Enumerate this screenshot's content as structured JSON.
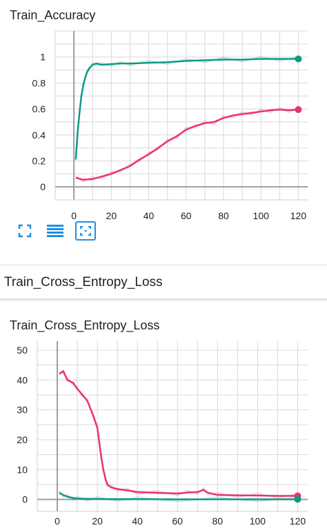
{
  "section_title": "Train_Cross_Entropy_Loss",
  "colors": {
    "teal": "#0e9a82",
    "pink": "#e8336d",
    "grid": "#d8d8d8",
    "axis": "#9e9e9e",
    "accent": "#1f8fe5"
  },
  "toolbar": {
    "icons": [
      "fullscreen-icon",
      "toggle-log-scale-icon",
      "fit-domain-icon"
    ]
  },
  "chart_data": [
    {
      "type": "line",
      "title": "Train_Accuracy",
      "xlim": [
        -10,
        125
      ],
      "ylim": [
        -0.1,
        1.2
      ],
      "xticks": [
        0,
        20,
        40,
        60,
        80,
        100,
        120
      ],
      "yticks": [
        0,
        0.2,
        0.4,
        0.6,
        0.8,
        1
      ],
      "ytick_labels": [
        "0",
        "0.2",
        "0.4",
        "0.6",
        "0.8",
        "1"
      ],
      "series": [
        {
          "color": "#0e9a82",
          "x": [
            1,
            2,
            3,
            4,
            5,
            6,
            7,
            8,
            10,
            12,
            15,
            20,
            25,
            30,
            40,
            50,
            60,
            70,
            80,
            90,
            100,
            110,
            120
          ],
          "y": [
            0.21,
            0.42,
            0.57,
            0.7,
            0.78,
            0.84,
            0.88,
            0.91,
            0.94,
            0.95,
            0.94,
            0.945,
            0.95,
            0.95,
            0.955,
            0.96,
            0.97,
            0.975,
            0.98,
            0.98,
            0.985,
            0.985,
            0.985
          ]
        },
        {
          "color": "#e8336d",
          "x": [
            1,
            5,
            10,
            15,
            20,
            25,
            30,
            35,
            40,
            45,
            50,
            55,
            60,
            65,
            70,
            75,
            80,
            85,
            90,
            95,
            100,
            105,
            110,
            115,
            120
          ],
          "y": [
            0.07,
            0.055,
            0.06,
            0.08,
            0.1,
            0.13,
            0.16,
            0.21,
            0.25,
            0.3,
            0.35,
            0.39,
            0.44,
            0.47,
            0.49,
            0.5,
            0.53,
            0.55,
            0.56,
            0.57,
            0.58,
            0.59,
            0.595,
            0.59,
            0.595
          ]
        }
      ]
    },
    {
      "type": "line",
      "title": "Train_Cross_Entropy_Loss",
      "xlim": [
        -10,
        125
      ],
      "ylim": [
        -4,
        53
      ],
      "xticks": [
        0,
        20,
        40,
        60,
        80,
        100,
        120
      ],
      "yticks": [
        0,
        10,
        20,
        30,
        40,
        50
      ],
      "ytick_labels": [
        "0",
        "10",
        "20",
        "30",
        "40",
        "50"
      ],
      "series": [
        {
          "color": "#e8336d",
          "x": [
            1,
            3,
            5,
            8,
            10,
            12,
            15,
            18,
            20,
            21,
            22,
            23,
            24,
            25,
            27,
            30,
            35,
            40,
            50,
            60,
            65,
            70,
            73,
            75,
            80,
            90,
            100,
            110,
            120
          ],
          "y": [
            42,
            43,
            40,
            39,
            37,
            35.5,
            33,
            28,
            24,
            19,
            14,
            10,
            7,
            5,
            4,
            3.5,
            3,
            2.5,
            2.2,
            2,
            2.3,
            2.5,
            3.2,
            2.3,
            1.5,
            1.4,
            1.3,
            1.2,
            1.2
          ]
        },
        {
          "color": "#0e9a82",
          "x": [
            1,
            3,
            5,
            8,
            10,
            15,
            20,
            30,
            40,
            60,
            80,
            100,
            120
          ],
          "y": [
            2.2,
            1.5,
            0.9,
            0.5,
            0.3,
            0.2,
            0.15,
            0.1,
            0.1,
            0.05,
            0.05,
            0.05,
            0.05
          ]
        }
      ]
    }
  ]
}
